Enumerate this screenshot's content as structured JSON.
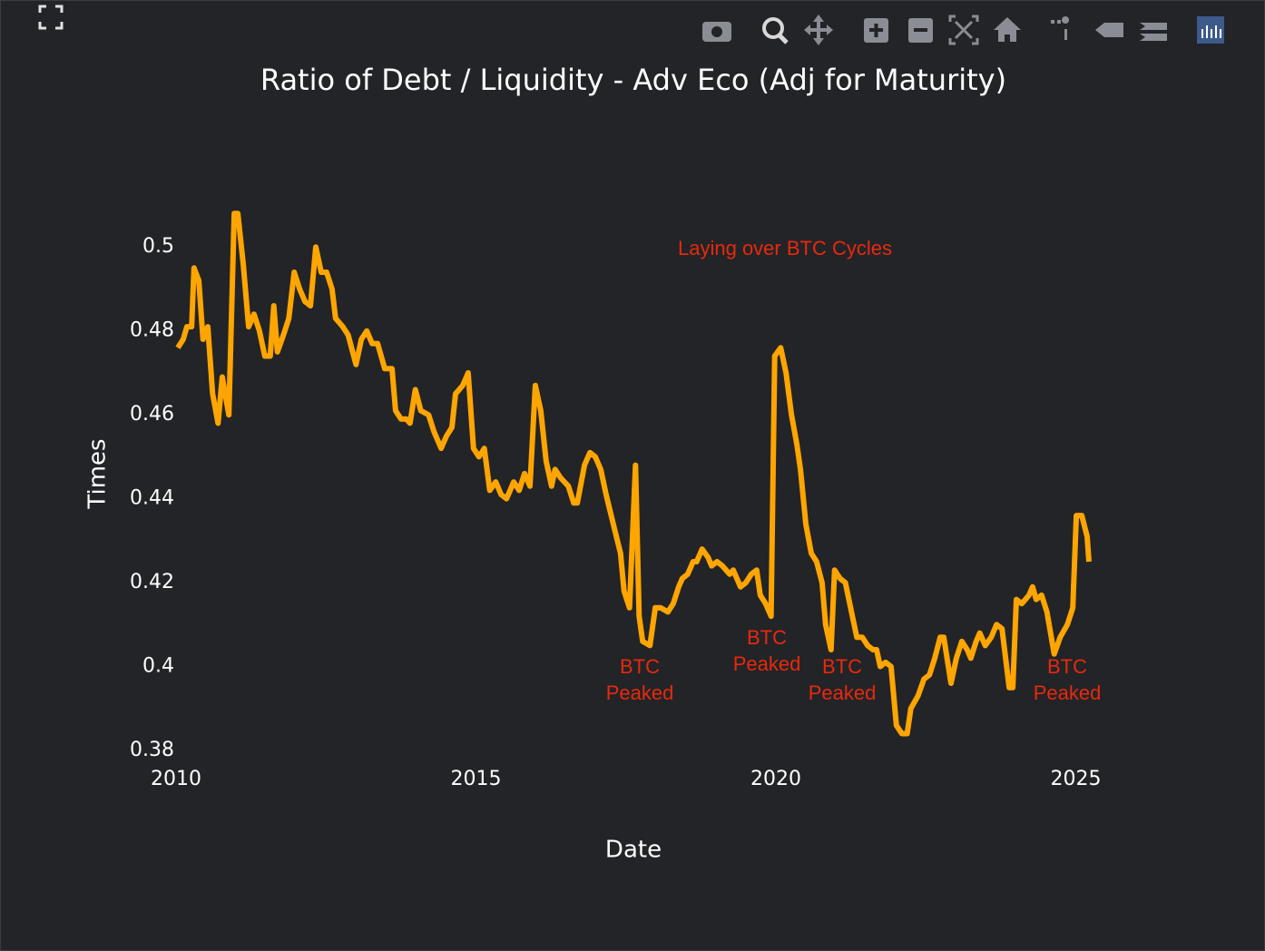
{
  "chart_data": {
    "type": "line",
    "title": "Ratio of Debt / Liquidity - Adv Eco (Adj for Maturity)",
    "x_label": "Date",
    "y_label": "Times",
    "xlim": [
      2010,
      2025.22
    ],
    "xticks": [
      2010,
      2015,
      2020,
      2025
    ],
    "ylim": [
      0.38,
      0.51
    ],
    "yticks": [
      0.38,
      0.4,
      0.42,
      0.44,
      0.46,
      0.48,
      0.5
    ],
    "grid": false,
    "annotation_color": "#e8290b",
    "annotations": [
      {
        "lines": [
          "Laying over BTC Cycles"
        ]
      },
      {
        "lines": [
          "BTC",
          "Peaked"
        ]
      },
      {
        "lines": [
          "BTC",
          "Peaked"
        ]
      },
      {
        "lines": [
          "BTC",
          "Peaked"
        ]
      },
      {
        "lines": [
          "BTC",
          "Peaked"
        ]
      }
    ],
    "series": [
      {
        "color": "#ffa500",
        "x": [
          2010.03,
          2010.12,
          2010.18,
          2010.26,
          2010.3,
          2010.38,
          2010.45,
          2010.53,
          2010.61,
          2010.7,
          2010.77,
          2010.88,
          2010.97,
          2011.03,
          2011.12,
          2011.21,
          2011.3,
          2011.39,
          2011.48,
          2011.57,
          2011.63,
          2011.69,
          2011.79,
          2011.88,
          2011.97,
          2012.06,
          2012.15,
          2012.24,
          2012.33,
          2012.42,
          2012.51,
          2012.6,
          2012.66,
          2012.78,
          2012.87,
          2013.0,
          2013.09,
          2013.18,
          2013.27,
          2013.36,
          2013.48,
          2013.6,
          2013.66,
          2013.75,
          2013.84,
          2013.9,
          2013.99,
          2014.08,
          2014.21,
          2014.3,
          2014.42,
          2014.51,
          2014.6,
          2014.66,
          2014.78,
          2014.87,
          2014.96,
          2015.05,
          2015.14,
          2015.23,
          2015.33,
          2015.42,
          2015.51,
          2015.63,
          2015.72,
          2015.81,
          2015.9,
          2015.99,
          2016.08,
          2016.17,
          2016.26,
          2016.32,
          2016.41,
          2016.54,
          2016.63,
          2016.69,
          2016.81,
          2016.9,
          2016.99,
          2017.08,
          2017.17,
          2017.29,
          2017.41,
          2017.47,
          2017.56,
          2017.66,
          2017.72,
          2017.78,
          2017.9,
          2017.99,
          2018.08,
          2018.2,
          2018.29,
          2018.38,
          2018.44,
          2018.53,
          2018.62,
          2018.68,
          2018.77,
          2018.87,
          2018.93,
          2019.02,
          2019.11,
          2019.23,
          2019.29,
          2019.41,
          2019.5,
          2019.59,
          2019.68,
          2019.74,
          2019.83,
          2019.92,
          2019.98,
          2020.08,
          2020.17,
          2020.26,
          2020.35,
          2020.41,
          2020.5,
          2020.59,
          2020.68,
          2020.77,
          2020.83,
          2020.92,
          2020.98,
          2021.07,
          2021.16,
          2021.26,
          2021.35,
          2021.44,
          2021.53,
          2021.62,
          2021.68,
          2021.74,
          2021.83,
          2021.92,
          2022.01,
          2022.1,
          2022.19,
          2022.25,
          2022.37,
          2022.47,
          2022.56,
          2022.65,
          2022.74,
          2022.8,
          2022.92,
          2023.01,
          2023.1,
          2023.19,
          2023.25,
          2023.34,
          2023.4,
          2023.49,
          2023.59,
          2023.68,
          2023.77,
          2023.89,
          2023.95,
          2024.01,
          2024.1,
          2024.22,
          2024.28,
          2024.34,
          2024.43,
          2024.52,
          2024.64,
          2024.74,
          2024.86,
          2024.95,
          2025.01,
          2025.1,
          2025.19,
          2025.22
        ],
        "values": [
          0.476,
          0.478,
          0.481,
          0.481,
          0.495,
          0.492,
          0.478,
          0.481,
          0.465,
          0.458,
          0.469,
          0.46,
          0.508,
          0.508,
          0.496,
          0.481,
          0.484,
          0.48,
          0.474,
          0.474,
          0.486,
          0.475,
          0.479,
          0.483,
          0.494,
          0.49,
          0.487,
          0.486,
          0.5,
          0.494,
          0.494,
          0.49,
          0.483,
          0.481,
          0.479,
          0.472,
          0.478,
          0.48,
          0.477,
          0.477,
          0.471,
          0.471,
          0.461,
          0.459,
          0.459,
          0.458,
          0.466,
          0.461,
          0.46,
          0.456,
          0.452,
          0.455,
          0.457,
          0.465,
          0.467,
          0.47,
          0.452,
          0.45,
          0.452,
          0.442,
          0.444,
          0.441,
          0.44,
          0.444,
          0.442,
          0.446,
          0.443,
          0.467,
          0.461,
          0.449,
          0.443,
          0.447,
          0.445,
          0.443,
          0.439,
          0.439,
          0.448,
          0.451,
          0.45,
          0.447,
          0.441,
          0.434,
          0.427,
          0.418,
          0.414,
          0.448,
          0.412,
          0.406,
          0.405,
          0.414,
          0.414,
          0.413,
          0.415,
          0.419,
          0.421,
          0.422,
          0.425,
          0.425,
          0.428,
          0.426,
          0.424,
          0.425,
          0.424,
          0.422,
          0.423,
          0.419,
          0.42,
          0.422,
          0.423,
          0.417,
          0.415,
          0.412,
          0.474,
          0.476,
          0.47,
          0.46,
          0.453,
          0.447,
          0.434,
          0.427,
          0.425,
          0.42,
          0.41,
          0.404,
          0.423,
          0.421,
          0.42,
          0.413,
          0.407,
          0.407,
          0.405,
          0.404,
          0.404,
          0.4,
          0.401,
          0.4,
          0.386,
          0.384,
          0.384,
          0.39,
          0.393,
          0.397,
          0.398,
          0.402,
          0.407,
          0.407,
          0.396,
          0.402,
          0.406,
          0.404,
          0.402,
          0.406,
          0.408,
          0.405,
          0.407,
          0.41,
          0.409,
          0.395,
          0.395,
          0.416,
          0.415,
          0.417,
          0.419,
          0.416,
          0.417,
          0.413,
          0.403,
          0.407,
          0.41,
          0.414,
          0.436,
          0.436,
          0.431,
          0.425
        ]
      }
    ]
  }
}
